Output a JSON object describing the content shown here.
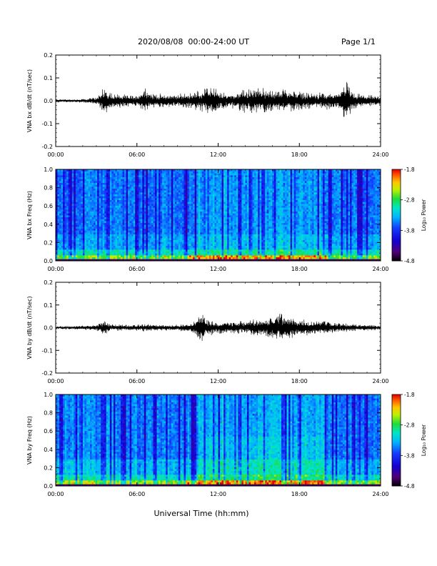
{
  "header": {
    "title": "2020/08/08  00:00-24:00 UT",
    "page": "Page 1/1"
  },
  "bottom_xlabel": "Universal Time (hh:mm)",
  "colorbar": {
    "label": "Log₁₀ Power",
    "ticks": [
      -1.8,
      -2.8,
      -3.8,
      -4.8
    ],
    "tick_labels": [
      "-1.8",
      "-2.8",
      "-3.8",
      "-4.8"
    ],
    "range": [
      -4.8,
      -1.8
    ],
    "colormap": "rainbow (black-purple-blue-cyan-green-yellow-orange-red)"
  },
  "chart_data": [
    {
      "type": "line",
      "ylabel": "VNA bx dB/dt (nT/sec)",
      "xlim": [
        "00:00",
        "24:00"
      ],
      "ylim": [
        -0.2,
        0.2
      ],
      "yticks": [
        -0.2,
        -0.1,
        0.0,
        0.1,
        0.2
      ],
      "ytick_labels": [
        "-0.2",
        "-0.1",
        "0.0",
        "0.1",
        "0.2"
      ],
      "xtick_labels": [
        "00:00",
        "06:00",
        "12:00",
        "18:00",
        "24:00"
      ],
      "color": "#000000",
      "series": [
        {
          "x": [
            "00:00",
            "01:00",
            "02:00",
            "03:00",
            "03:30",
            "04:00",
            "05:00",
            "06:00",
            "06:40",
            "07:00",
            "08:00",
            "09:00",
            "10:00",
            "11:00",
            "11:40",
            "12:00",
            "13:00",
            "14:00",
            "15:00",
            "16:00",
            "17:00",
            "18:00",
            "19:00",
            "20:00",
            "21:00",
            "21:20",
            "22:00",
            "23:00",
            "24:00"
          ],
          "envelope": [
            0.006,
            0.005,
            0.006,
            0.012,
            0.045,
            0.03,
            0.02,
            0.018,
            0.05,
            0.025,
            0.022,
            0.022,
            0.028,
            0.04,
            0.055,
            0.03,
            0.025,
            0.04,
            0.045,
            0.035,
            0.04,
            0.032,
            0.025,
            0.028,
            0.025,
            0.08,
            0.025,
            0.02,
            0.015
          ]
        }
      ]
    },
    {
      "type": "heatmap",
      "ylabel": "VNA bx Freq (Hz)",
      "xlim": [
        "00:00",
        "24:00"
      ],
      "ylim": [
        0.0,
        1.0
      ],
      "yticks": [
        0.0,
        0.2,
        0.4,
        0.6,
        0.8,
        1.0
      ],
      "ytick_labels": [
        "0.0",
        "0.2",
        "0.4",
        "0.6",
        "0.8",
        "1.0"
      ],
      "xtick_labels": [
        "00:00",
        "06:00",
        "12:00",
        "18:00",
        "24:00"
      ],
      "zlim": [
        -4.8,
        -1.8
      ]
    },
    {
      "type": "line",
      "ylabel": "VNA by dB/dt (nT/sec)",
      "xlim": [
        "00:00",
        "24:00"
      ],
      "ylim": [
        -0.2,
        0.2
      ],
      "yticks": [
        -0.2,
        -0.1,
        0.0,
        0.1,
        0.2
      ],
      "ytick_labels": [
        "-0.2",
        "-0.1",
        "0.0",
        "0.1",
        "0.2"
      ],
      "xtick_labels": [
        "00:00",
        "06:00",
        "12:00",
        "18:00",
        "24:00"
      ],
      "color": "#000000",
      "series": [
        {
          "x": [
            "00:00",
            "01:00",
            "02:00",
            "03:00",
            "03:30",
            "04:00",
            "05:00",
            "06:00",
            "07:00",
            "08:00",
            "09:00",
            "10:00",
            "10:50",
            "11:10",
            "12:00",
            "13:00",
            "14:00",
            "15:00",
            "16:00",
            "16:40",
            "17:00",
            "18:00",
            "19:00",
            "20:00",
            "21:00",
            "22:00",
            "23:00",
            "24:00"
          ],
          "envelope": [
            0.006,
            0.006,
            0.007,
            0.01,
            0.025,
            0.012,
            0.01,
            0.012,
            0.012,
            0.01,
            0.01,
            0.015,
            0.055,
            0.03,
            0.02,
            0.02,
            0.022,
            0.03,
            0.04,
            0.05,
            0.04,
            0.03,
            0.025,
            0.025,
            0.015,
            0.012,
            0.01,
            0.008
          ]
        }
      ]
    },
    {
      "type": "heatmap",
      "ylabel": "VNA by Freq (Hz)",
      "xlim": [
        "00:00",
        "24:00"
      ],
      "ylim": [
        0.0,
        1.0
      ],
      "yticks": [
        0.0,
        0.2,
        0.4,
        0.6,
        0.8,
        1.0
      ],
      "ytick_labels": [
        "0.0",
        "0.2",
        "0.4",
        "0.6",
        "0.8",
        "1.0"
      ],
      "xtick_labels": [
        "00:00",
        "06:00",
        "12:00",
        "18:00",
        "24:00"
      ],
      "zlim": [
        -4.8,
        -1.8
      ]
    }
  ]
}
